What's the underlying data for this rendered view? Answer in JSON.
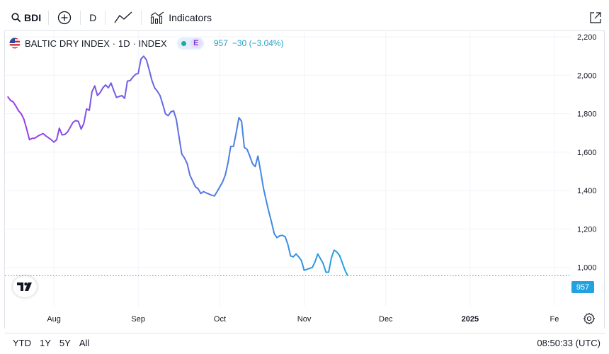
{
  "toolbar": {
    "symbol": "BDI",
    "interval": "D",
    "indicators_label": "Indicators"
  },
  "legend": {
    "title": "BALTIC DRY INDEX · 1D · INDEX",
    "badge_letter": "E",
    "last_value": "957",
    "change": "−30 (−3.04%)"
  },
  "price_tag": "957",
  "bottom": {
    "ranges": [
      "YTD",
      "1Y",
      "5Y",
      "All"
    ],
    "clock": "08:50:33 (UTC)"
  },
  "colors": {
    "line_start": "#9c3ae8",
    "line_end": "#22a2e0",
    "last_price": "#22a2e0",
    "grid": "#f0f3fa"
  },
  "chart_data": {
    "type": "line",
    "title": "BALTIC DRY INDEX · 1D · INDEX",
    "ylim": [
      800,
      2230
    ],
    "y_ticks": [
      1000,
      1200,
      1400,
      1600,
      1800,
      2000,
      2200
    ],
    "y_tick_labels": [
      "1,000",
      "1,200",
      "1,400",
      "1,600",
      "1,800",
      "2,000",
      "2,200"
    ],
    "x_labels": [
      {
        "label": "Aug",
        "t": 18,
        "bold": false
      },
      {
        "label": "Sep",
        "t": 49,
        "bold": false
      },
      {
        "label": "Oct",
        "t": 79,
        "bold": false
      },
      {
        "label": "Nov",
        "t": 110,
        "bold": false
      },
      {
        "label": "Dec",
        "t": 140,
        "bold": false
      },
      {
        "label": "2025",
        "t": 171,
        "bold": true
      },
      {
        "label": "Fe",
        "t": 202,
        "bold": false
      }
    ],
    "xlim": [
      0,
      208
    ],
    "last_price": 957,
    "series": [
      {
        "name": "BDI",
        "points": [
          [
            1,
            1890
          ],
          [
            2,
            1870
          ],
          [
            3,
            1862
          ],
          [
            4,
            1840
          ],
          [
            5,
            1815
          ],
          [
            6,
            1800
          ],
          [
            7,
            1770
          ],
          [
            8,
            1720
          ],
          [
            9,
            1665
          ],
          [
            10,
            1672
          ],
          [
            11,
            1673
          ],
          [
            12,
            1683
          ],
          [
            14,
            1697
          ],
          [
            15,
            1685
          ],
          [
            16,
            1675
          ],
          [
            17,
            1665
          ],
          [
            18,
            1652
          ],
          [
            19,
            1665
          ],
          [
            20,
            1725
          ],
          [
            21,
            1690
          ],
          [
            22,
            1692
          ],
          [
            23,
            1705
          ],
          [
            24,
            1730
          ],
          [
            25,
            1755
          ],
          [
            26,
            1765
          ],
          [
            27,
            1760
          ],
          [
            28,
            1720
          ],
          [
            29,
            1750
          ],
          [
            30,
            1825
          ],
          [
            31,
            1818
          ],
          [
            32,
            1915
          ],
          [
            33,
            1945
          ],
          [
            34,
            1895
          ],
          [
            35,
            1910
          ],
          [
            36,
            1935
          ],
          [
            37,
            1950
          ],
          [
            38,
            1935
          ],
          [
            39,
            1960
          ],
          [
            40,
            1920
          ],
          [
            41,
            1885
          ],
          [
            42,
            1890
          ],
          [
            43,
            1895
          ],
          [
            44,
            1880
          ],
          [
            45,
            1970
          ],
          [
            46,
            1972
          ],
          [
            47,
            1990
          ],
          [
            48,
            2005
          ],
          [
            49,
            2010
          ],
          [
            50,
            2085
          ],
          [
            51,
            2100
          ],
          [
            52,
            2080
          ],
          [
            53,
            2030
          ],
          [
            54,
            1975
          ],
          [
            55,
            1935
          ],
          [
            56,
            1918
          ],
          [
            57,
            1895
          ],
          [
            58,
            1850
          ],
          [
            59,
            1800
          ],
          [
            60,
            1790
          ],
          [
            61,
            1810
          ],
          [
            62,
            1815
          ],
          [
            63,
            1770
          ],
          [
            64,
            1680
          ],
          [
            65,
            1590
          ],
          [
            66,
            1570
          ],
          [
            67,
            1540
          ],
          [
            68,
            1480
          ],
          [
            69,
            1450
          ],
          [
            70,
            1420
          ],
          [
            71,
            1410
          ],
          [
            72,
            1385
          ],
          [
            73,
            1395
          ],
          [
            74,
            1388
          ],
          [
            75,
            1382
          ],
          [
            76,
            1376
          ],
          [
            77,
            1372
          ],
          [
            78,
            1395
          ],
          [
            79,
            1420
          ],
          [
            80,
            1445
          ],
          [
            81,
            1480
          ],
          [
            82,
            1545
          ],
          [
            83,
            1630
          ],
          [
            84,
            1630
          ],
          [
            85,
            1700
          ],
          [
            86,
            1780
          ],
          [
            87,
            1760
          ],
          [
            88,
            1625
          ],
          [
            89,
            1615
          ],
          [
            90,
            1580
          ],
          [
            91,
            1540
          ],
          [
            92,
            1525
          ],
          [
            93,
            1580
          ],
          [
            94,
            1500
          ],
          [
            95,
            1415
          ],
          [
            96,
            1350
          ],
          [
            97,
            1290
          ],
          [
            98,
            1235
          ],
          [
            99,
            1175
          ],
          [
            100,
            1155
          ],
          [
            101,
            1165
          ],
          [
            102,
            1167
          ],
          [
            103,
            1160
          ],
          [
            104,
            1120
          ],
          [
            105,
            1060
          ],
          [
            106,
            1055
          ],
          [
            107,
            1070
          ],
          [
            108,
            1055
          ],
          [
            109,
            1035
          ],
          [
            110,
            985
          ],
          [
            111,
            990
          ],
          [
            112,
            995
          ],
          [
            113,
            1000
          ],
          [
            114,
            1030
          ],
          [
            115,
            1070
          ],
          [
            116,
            1045
          ],
          [
            117,
            1020
          ],
          [
            118,
            975
          ],
          [
            119,
            975
          ],
          [
            120,
            1050
          ],
          [
            121,
            1090
          ],
          [
            122,
            1080
          ],
          [
            123,
            1062
          ],
          [
            124,
            1025
          ],
          [
            125,
            985
          ],
          [
            126,
            957
          ]
        ]
      }
    ]
  }
}
